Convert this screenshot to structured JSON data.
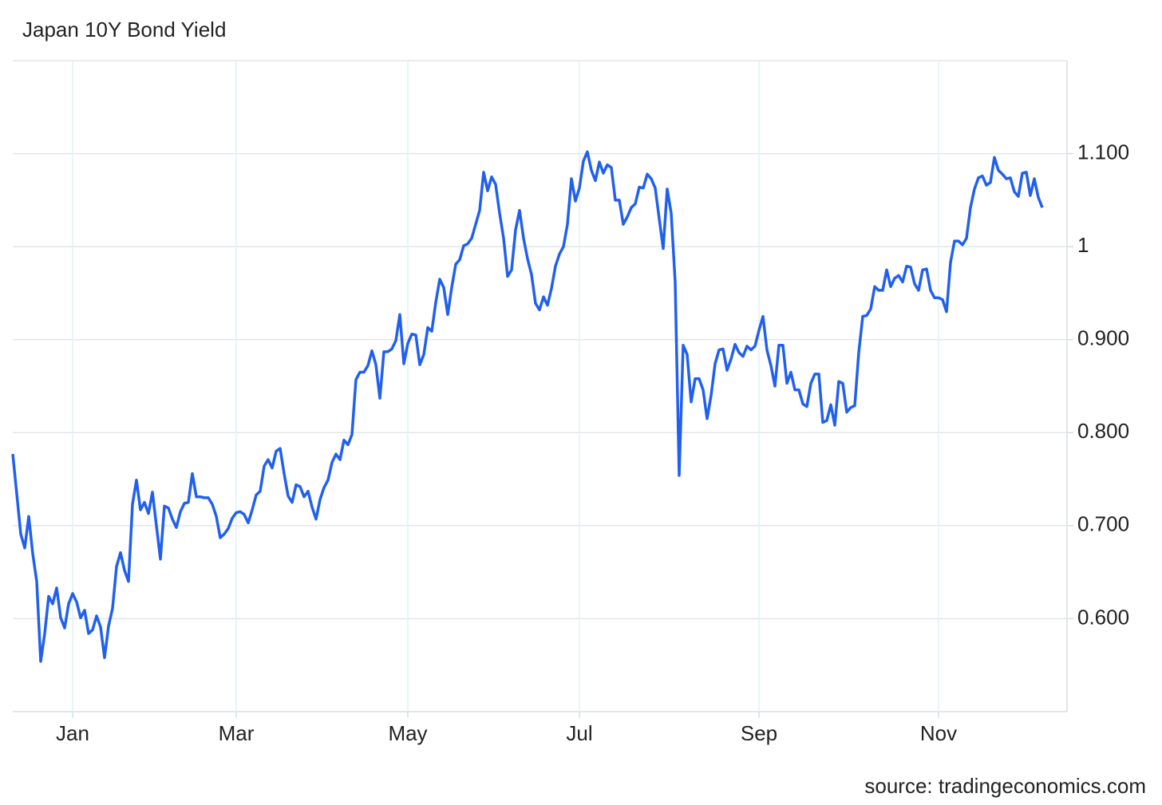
{
  "chart_data": {
    "type": "line",
    "title": "Japan 10Y Bond Yield",
    "source": "source: tradingeconomics.com",
    "color": "#2160ee",
    "grid": true,
    "ylim": [
      0.5,
      1.2
    ],
    "yticks": [
      {
        "value": 0.6,
        "label": "0.600"
      },
      {
        "value": 0.7,
        "label": "0.700"
      },
      {
        "value": 0.8,
        "label": "0.800"
      },
      {
        "value": 0.9,
        "label": "0.900"
      },
      1,
      {
        "value": 1.1,
        "label": "1.100"
      }
    ],
    "categories": [
      null,
      null,
      null,
      null,
      null,
      null,
      null,
      null,
      null,
      null,
      null,
      null,
      null,
      null,
      null,
      "Jan",
      null,
      null,
      null,
      null,
      null,
      null,
      null,
      null,
      null,
      null,
      null,
      null,
      null,
      null,
      null,
      null,
      null,
      null,
      null,
      null,
      null,
      null,
      null,
      null,
      null,
      null,
      null,
      null,
      null,
      null,
      null,
      null,
      null,
      null,
      null,
      null,
      null,
      null,
      null,
      null,
      "Mar",
      null,
      null,
      null,
      null,
      null,
      null,
      null,
      null,
      null,
      null,
      null,
      null,
      null,
      null,
      null,
      null,
      null,
      null,
      null,
      null,
      null,
      null,
      null,
      null,
      null,
      null,
      null,
      null,
      null,
      null,
      null,
      null,
      null,
      null,
      null,
      null,
      null,
      null,
      null,
      null,
      null,
      null,
      "May",
      null,
      null,
      null,
      null,
      null,
      null,
      null,
      null,
      null,
      null,
      null,
      null,
      null,
      null,
      null,
      null,
      null,
      null,
      null,
      null,
      null,
      null,
      null,
      null,
      null,
      null,
      null,
      null,
      null,
      null,
      null,
      null,
      null,
      null,
      null,
      null,
      null,
      null,
      null,
      null,
      null,
      null,
      "Jul",
      null,
      null,
      null,
      null,
      null,
      null,
      null,
      null,
      null,
      null,
      null,
      null,
      null,
      null,
      null,
      null,
      null,
      null,
      null,
      null,
      null,
      null,
      null,
      null,
      null,
      null,
      null,
      null,
      null,
      null,
      null,
      null,
      null,
      null,
      null,
      null,
      null,
      null,
      null,
      null,
      null,
      null,
      null,
      null,
      "Sep",
      null,
      null,
      null,
      null,
      null,
      null,
      null,
      null,
      null,
      null,
      null,
      null,
      null,
      null,
      null,
      null,
      null,
      null,
      null,
      null,
      null,
      null,
      null,
      null,
      null,
      null,
      null,
      null,
      null,
      null,
      null,
      null,
      null,
      null,
      null,
      null,
      null,
      null,
      null,
      null,
      null,
      null,
      null,
      null,
      "Nov",
      null,
      null,
      null,
      null,
      null,
      null,
      null,
      null,
      null,
      null,
      null,
      null,
      null,
      null,
      null,
      null,
      null,
      null,
      null,
      null,
      null,
      null,
      null,
      null,
      null,
      null
    ],
    "values": [
      0.777,
      0.734,
      0.691,
      0.676,
      0.71,
      0.67,
      0.64,
      0.554,
      0.584,
      0.624,
      0.616,
      0.633,
      0.601,
      0.59,
      0.616,
      0.627,
      0.618,
      0.601,
      0.609,
      0.584,
      0.588,
      0.603,
      0.591,
      0.558,
      0.592,
      0.611,
      0.656,
      0.671,
      0.652,
      0.64,
      0.723,
      0.749,
      0.717,
      0.725,
      0.713,
      0.736,
      0.7,
      0.664,
      0.721,
      0.719,
      0.707,
      0.698,
      0.715,
      0.724,
      0.725,
      0.756,
      0.731,
      0.731,
      0.73,
      0.73,
      0.723,
      0.71,
      0.687,
      0.691,
      0.697,
      0.708,
      0.714,
      0.715,
      0.712,
      0.703,
      0.717,
      0.733,
      0.737,
      0.764,
      0.771,
      0.762,
      0.78,
      0.783,
      0.756,
      0.732,
      0.725,
      0.744,
      0.742,
      0.731,
      0.737,
      0.72,
      0.707,
      0.728,
      0.741,
      0.749,
      0.768,
      0.777,
      0.771,
      0.792,
      0.787,
      0.798,
      0.857,
      0.865,
      0.865,
      0.872,
      0.888,
      0.873,
      0.837,
      0.887,
      0.887,
      0.89,
      0.899,
      0.927,
      0.874,
      0.896,
      0.906,
      0.905,
      0.873,
      0.884,
      0.913,
      0.909,
      0.94,
      0.965,
      0.956,
      0.927,
      0.956,
      0.981,
      0.986,
      1.001,
      1.003,
      1.009,
      1.024,
      1.039,
      1.08,
      1.06,
      1.075,
      1.067,
      1.036,
      1.009,
      0.968,
      0.975,
      1.018,
      1.039,
      1.009,
      0.987,
      0.97,
      0.939,
      0.932,
      0.946,
      0.937,
      0.955,
      0.979,
      0.992,
      1.0,
      1.024,
      1.073,
      1.049,
      1.063,
      1.092,
      1.102,
      1.082,
      1.071,
      1.091,
      1.079,
      1.088,
      1.085,
      1.05,
      1.05,
      1.024,
      1.032,
      1.042,
      1.046,
      1.064,
      1.063,
      1.078,
      1.073,
      1.063,
      1.03,
      0.998,
      1.062,
      1.036,
      0.962,
      0.754,
      0.894,
      0.884,
      0.833,
      0.858,
      0.858,
      0.846,
      0.815,
      0.84,
      0.874,
      0.889,
      0.89,
      0.867,
      0.879,
      0.895,
      0.886,
      0.882,
      0.893,
      0.889,
      0.893,
      0.91,
      0.925,
      0.889,
      0.872,
      0.85,
      0.894,
      0.894,
      0.853,
      0.865,
      0.846,
      0.846,
      0.831,
      0.828,
      0.853,
      0.863,
      0.863,
      0.811,
      0.813,
      0.83,
      0.808,
      0.855,
      0.853,
      0.822,
      0.827,
      0.829,
      0.886,
      0.925,
      0.926,
      0.933,
      0.957,
      0.953,
      0.953,
      0.975,
      0.957,
      0.966,
      0.969,
      0.962,
      0.979,
      0.978,
      0.96,
      0.953,
      0.975,
      0.976,
      0.953,
      0.945,
      0.945,
      0.943,
      0.93,
      0.983,
      1.006,
      1.006,
      1.002,
      1.009,
      1.042,
      1.062,
      1.074,
      1.076,
      1.066,
      1.069,
      1.096,
      1.082,
      1.078,
      1.073,
      1.074,
      1.059,
      1.054,
      1.079,
      1.08,
      1.055,
      1.073,
      1.053,
      1.042
    ]
  }
}
